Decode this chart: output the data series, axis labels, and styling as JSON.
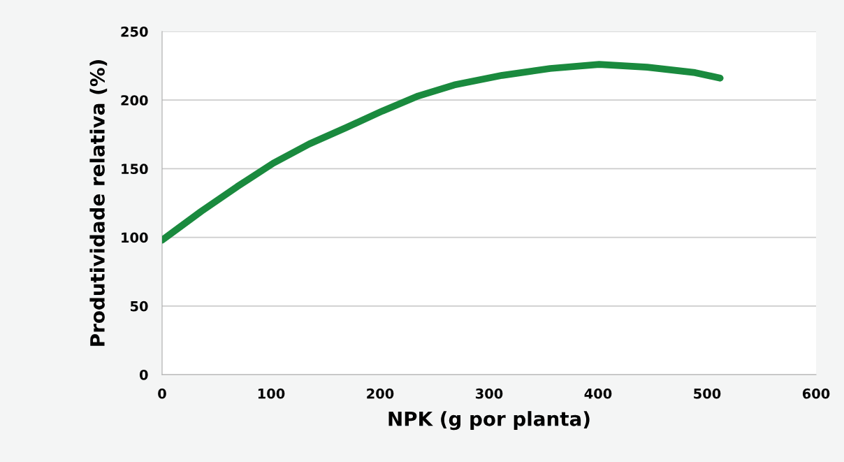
{
  "chart_data": {
    "type": "line",
    "xlabel": "NPK (g por planta)",
    "ylabel": "Produtividade relativa (%)",
    "x": [
      0,
      36,
      69,
      102,
      135,
      169,
      202,
      235,
      268,
      312,
      356,
      401,
      445,
      489,
      512
    ],
    "series": [
      {
        "color": "#1a8a3e",
        "values": [
          98,
          119,
          137,
          154,
          168,
          180,
          192,
          203,
          211,
          218,
          223,
          226,
          224,
          220,
          216
        ]
      }
    ],
    "xlim": [
      0,
      600
    ],
    "xticks": [
      0,
      100,
      200,
      300,
      400,
      500,
      600
    ],
    "ylim": [
      0,
      250
    ],
    "yticks": [
      0,
      50,
      100,
      150,
      200,
      250
    ],
    "grid": "y",
    "marker": "none",
    "line_style": "solid"
  }
}
